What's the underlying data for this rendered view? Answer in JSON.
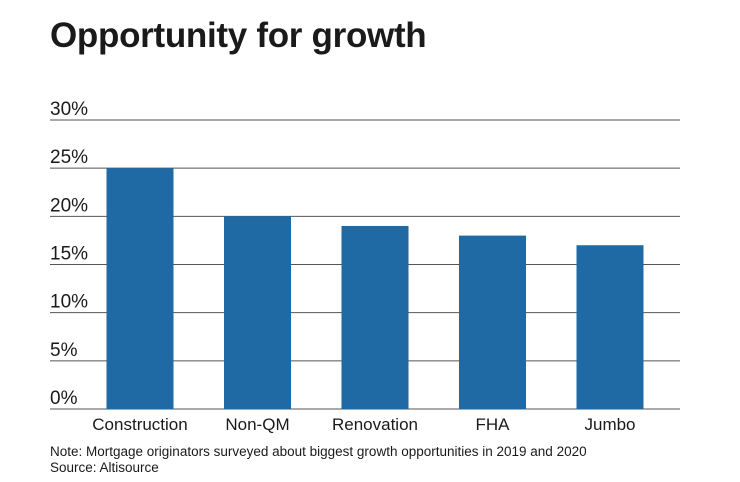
{
  "title": "Opportunity for growth",
  "note": "Note: Mortgage originators surveyed about biggest growth opportunities in 2019 and 2020",
  "source": "Source: Altisource",
  "chart_data": {
    "type": "bar",
    "title": "Opportunity for growth",
    "categories": [
      "Construction",
      "Non-QM",
      "Renovation",
      "FHA",
      "Jumbo"
    ],
    "values": [
      25,
      20,
      19,
      18,
      17
    ],
    "value_unit": "%",
    "ylim": [
      0,
      30
    ],
    "yticks": [
      0,
      5,
      10,
      15,
      20,
      25,
      30
    ],
    "ytick_labels": [
      "0%",
      "5%",
      "10%",
      "15%",
      "20%",
      "25%",
      "30%"
    ],
    "xlabel": "",
    "ylabel": "",
    "grid": true,
    "bar_color": "#1f6aa5",
    "grid_color": "#555555"
  }
}
